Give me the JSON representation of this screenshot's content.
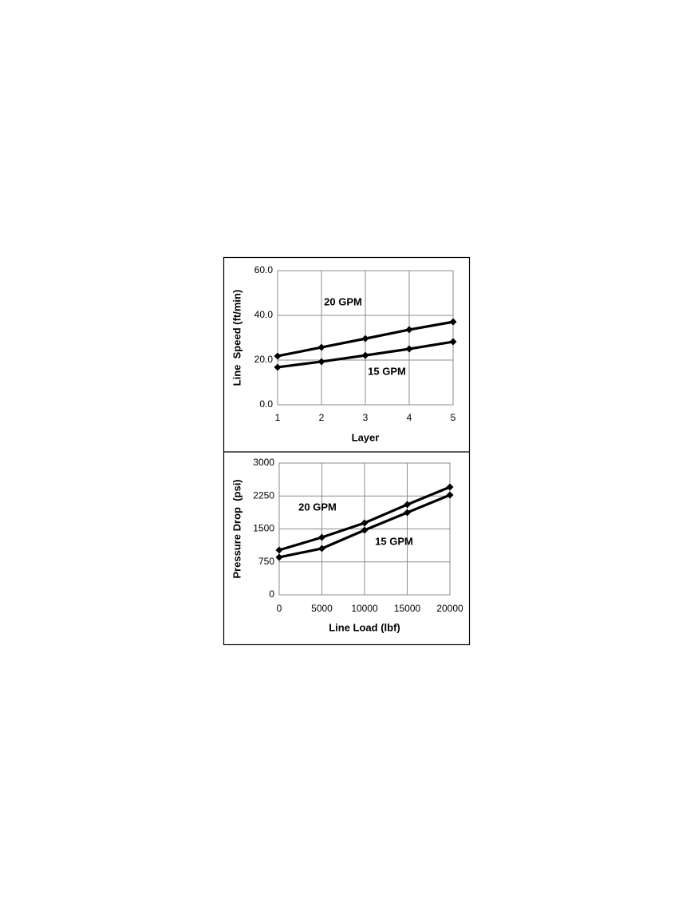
{
  "chart_data": [
    {
      "type": "line",
      "x_label": "Layer",
      "y_label": "Line  Speed (ft/min)",
      "x": [
        1,
        2,
        3,
        4,
        5
      ],
      "xlim": [
        1,
        5
      ],
      "xticks": [
        1,
        2,
        3,
        4,
        5
      ],
      "ylim": [
        0,
        60
      ],
      "yticks": [
        {
          "value": 0,
          "label": "0.0"
        },
        {
          "value": 20,
          "label": "20.0"
        },
        {
          "value": 40,
          "label": "40.0"
        },
        {
          "value": 60,
          "label": "60.0"
        }
      ],
      "grid": true,
      "series": [
        {
          "name": "20 GPM",
          "color": "#000000",
          "values": [
            21.8,
            25.7,
            29.6,
            33.6,
            37.1
          ]
        },
        {
          "name": "15 GPM",
          "color": "#000000",
          "values": [
            16.8,
            19.3,
            22.1,
            25.0,
            28.2
          ]
        }
      ]
    },
    {
      "type": "line",
      "x_label": "Line Load (lbf)",
      "y_label": "Pressure Drop  (psi)",
      "x": [
        0,
        5000,
        10000,
        15000,
        20000
      ],
      "xlim": [
        0,
        20000
      ],
      "xticks": [
        0,
        5000,
        10000,
        15000,
        20000
      ],
      "ylim": [
        0,
        3000
      ],
      "yticks": [
        0,
        750,
        1500,
        2250,
        3000
      ],
      "grid": true,
      "series": [
        {
          "name": "20 GPM",
          "color": "#000000",
          "values": [
            1018,
            1309,
            1636,
            2055,
            2455
          ]
        },
        {
          "name": "15 GPM",
          "color": "#000000",
          "values": [
            855,
            1055,
            1473,
            1873,
            2273
          ]
        }
      ]
    }
  ]
}
